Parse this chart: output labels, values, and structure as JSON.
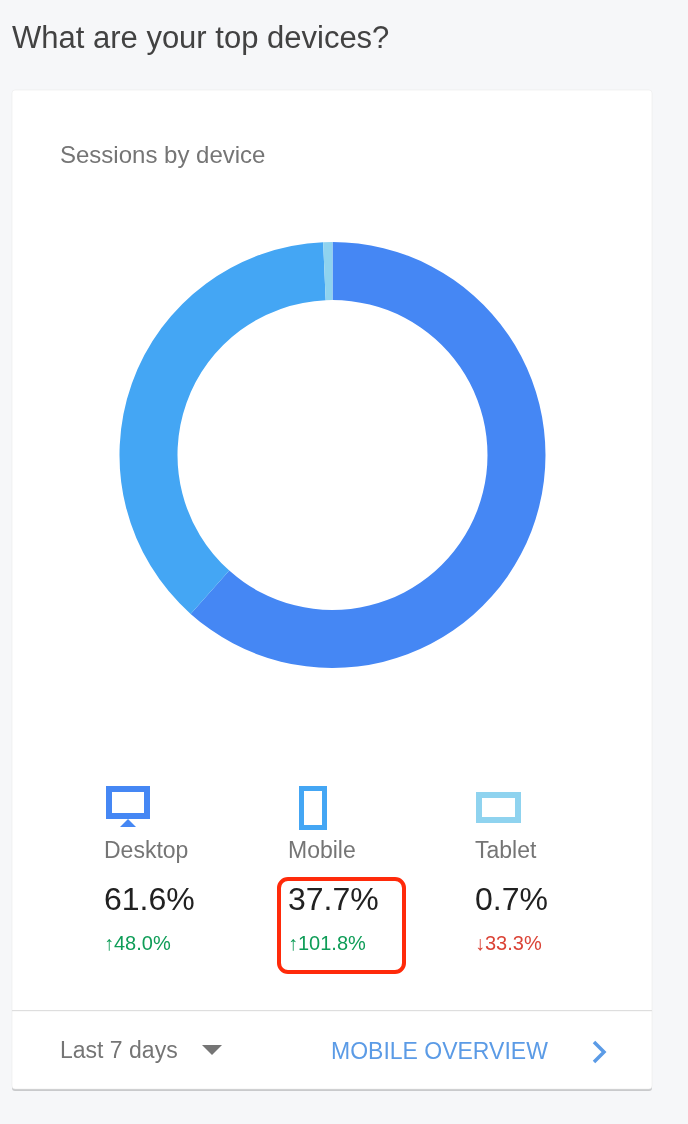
{
  "chart_data": {
    "type": "donut",
    "title": "What are your top devices?",
    "subtitle": "Sessions by device",
    "categories": [
      "Desktop",
      "Mobile",
      "Tablet"
    ],
    "values": [
      61.6,
      37.7,
      0.7
    ],
    "colors": [
      "#4587f4",
      "#44a6f4",
      "#8fd3ef"
    ],
    "value_labels": [
      "61.6%",
      "37.7%",
      "0.7%"
    ],
    "legend": "bottom",
    "annotations": [
      {
        "text": "↑48.0%",
        "x": "Desktop"
      },
      {
        "text": "↑101.8%",
        "x": "Mobile"
      },
      {
        "text": "↓33.3%",
        "x": "Tablet"
      },
      "Last 7 days",
      "MOBILE OVERVIEW"
    ]
  }
}
